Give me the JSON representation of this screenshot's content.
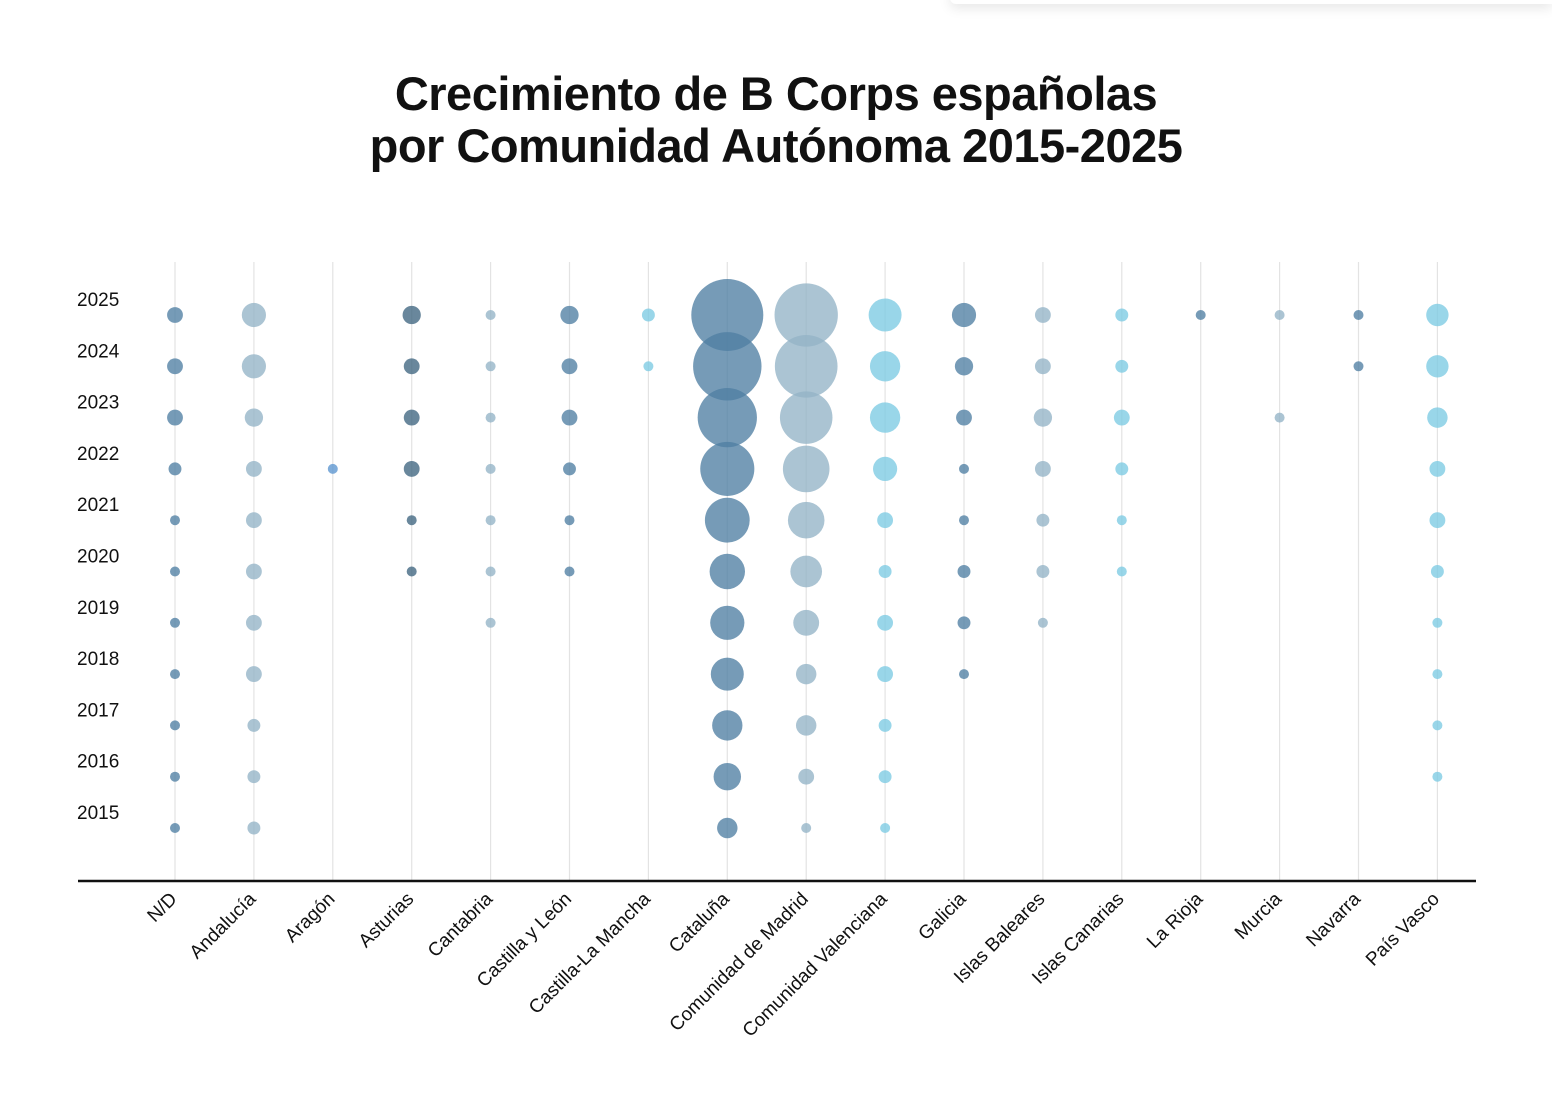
{
  "chart_data": {
    "type": "scatter",
    "title": [
      "Crecimiento de B Corps españolas",
      "por Comunidad Autónoma 2015-2025"
    ],
    "xlabel": "",
    "ylabel": "",
    "categories": [
      "N/D",
      "Andalucía",
      "Aragón",
      "Asturias",
      "Cantabria",
      "Castilla y León",
      "Castilla-La Mancha",
      "Cataluña",
      "Comunidad de Madrid",
      "Comunidad Valenciana",
      "Galicia",
      "Islas Baleares",
      "Islas Canarias",
      "La Rioja",
      "Murcia",
      "Navarra",
      "País Vasco"
    ],
    "years": [
      2015,
      2016,
      2017,
      2018,
      2019,
      2020,
      2021,
      2022,
      2023,
      2024,
      2025
    ],
    "series": [
      {
        "name": "N/D",
        "color": "#4f7fa3",
        "values": [
          1,
          1,
          1,
          1,
          1,
          1,
          1,
          2,
          3,
          3,
          3
        ]
      },
      {
        "name": "Andalucía",
        "color": "#93b4c6",
        "values": [
          2,
          2,
          2,
          3,
          3,
          3,
          3,
          3,
          4,
          7,
          7
        ]
      },
      {
        "name": "Aragón",
        "color": "#5b95cf",
        "values": [
          null,
          null,
          null,
          null,
          null,
          null,
          null,
          1,
          null,
          null,
          null
        ]
      },
      {
        "name": "Asturias",
        "color": "#3f6580",
        "values": [
          null,
          null,
          null,
          null,
          null,
          1,
          1,
          3,
          3,
          3,
          4
        ]
      },
      {
        "name": "Cantabria",
        "color": "#93b4c6",
        "values": [
          null,
          null,
          null,
          null,
          1,
          1,
          1,
          1,
          1,
          1,
          1
        ]
      },
      {
        "name": "Castilla y León",
        "color": "#4f7fa3",
        "values": [
          null,
          null,
          null,
          null,
          null,
          1,
          1,
          2,
          3,
          3,
          4
        ]
      },
      {
        "name": "Castilla-La Mancha",
        "color": "#7ccbe3",
        "values": [
          null,
          null,
          null,
          null,
          null,
          null,
          null,
          null,
          null,
          1,
          2
        ]
      },
      {
        "name": "Cataluña",
        "color": "#4f7fa3",
        "values": [
          5,
          9,
          11,
          13,
          14,
          15,
          24,
          35,
          42,
          56,
          62
        ]
      },
      {
        "name": "Comunidad de Madrid",
        "color": "#93b4c6",
        "values": [
          1,
          3,
          5,
          5,
          8,
          12,
          16,
          26,
          33,
          47,
          48
        ]
      },
      {
        "name": "Comunidad Valenciana",
        "color": "#7ccbe3",
        "values": [
          1,
          2,
          2,
          3,
          3,
          2,
          3,
          7,
          11,
          11,
          13
        ]
      },
      {
        "name": "Galicia",
        "color": "#4f7fa3",
        "values": [
          null,
          null,
          null,
          1,
          2,
          2,
          1,
          1,
          3,
          4,
          7
        ]
      },
      {
        "name": "Islas Baleares",
        "color": "#93b4c6",
        "values": [
          null,
          null,
          null,
          null,
          1,
          2,
          2,
          3,
          4,
          3,
          3
        ]
      },
      {
        "name": "Islas Canarias",
        "color": "#7ccbe3",
        "values": [
          null,
          null,
          null,
          null,
          null,
          1,
          1,
          2,
          3,
          2,
          2
        ]
      },
      {
        "name": "La Rioja",
        "color": "#4f7fa3",
        "values": [
          null,
          null,
          null,
          null,
          null,
          null,
          null,
          null,
          null,
          null,
          1
        ]
      },
      {
        "name": "Murcia",
        "color": "#93b4c6",
        "values": [
          null,
          null,
          null,
          null,
          null,
          null,
          null,
          null,
          1,
          null,
          1
        ]
      },
      {
        "name": "Navarra",
        "color": "#4f7fa3",
        "values": [
          null,
          null,
          null,
          null,
          null,
          null,
          null,
          null,
          null,
          1,
          1
        ]
      },
      {
        "name": "País Vasco",
        "color": "#7ccbe3",
        "values": [
          null,
          1,
          1,
          1,
          1,
          2,
          3,
          3,
          5,
          6,
          6
        ]
      }
    ]
  }
}
